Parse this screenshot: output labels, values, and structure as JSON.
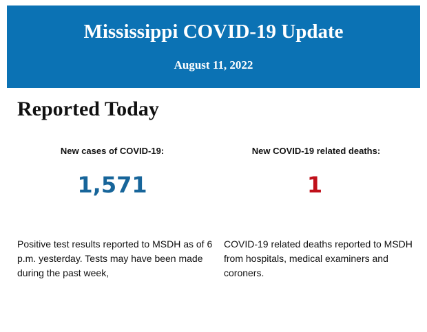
{
  "header": {
    "title": "Mississippi COVID-19 Update",
    "date": "August 11, 2022"
  },
  "section": {
    "title": "Reported Today",
    "columns": [
      {
        "heading": "New cases of COVID-19:",
        "value": "1,571",
        "description": "Positive test results reported to MSDH as of 6 p.m. yesterday. Tests may have been made during the past week,"
      },
      {
        "heading": "New COVID-19 related deaths:",
        "value": "1",
        "description": "COVID-19 related deaths reported to MSDH from hospitals, medical examiners and coroners."
      }
    ]
  }
}
